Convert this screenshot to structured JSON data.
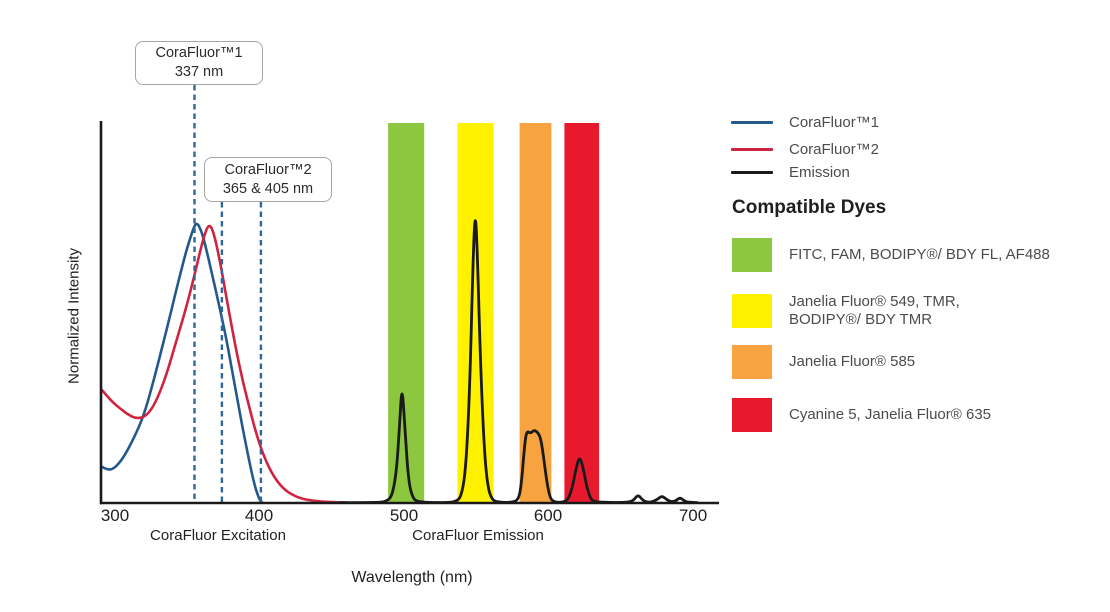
{
  "axes": {
    "y_label": "Normalized Intensity",
    "x_label": "Wavelength (nm)",
    "x_ticks": [
      "300",
      "400",
      "500",
      "600",
      "700"
    ],
    "excitation_section_label": "CoraFluor Excitation",
    "emission_section_label": "CoraFluor Emission"
  },
  "callouts": [
    {
      "title": "CoraFluor™1",
      "value": "337 nm"
    },
    {
      "title": "CoraFluor™2",
      "value": "365 & 405 nm"
    }
  ],
  "legend": {
    "items": [
      {
        "label": "CoraFluor™1",
        "color": "#24598c"
      },
      {
        "label": "CoraFluor™2",
        "color": "#cf2340"
      },
      {
        "label": "Emission",
        "color": "#1a1a1a"
      }
    ]
  },
  "compatible_dyes": {
    "heading": "Compatible Dyes",
    "items": [
      {
        "color": "#8dc63f",
        "label": "FITC, FAM, BODIPY®/ BDY FL, AF488"
      },
      {
        "color": "#fff200",
        "label": "Janelia Fluor® 549, TMR,\nBODIPY®/ BDY TMR"
      },
      {
        "color": "#f7a440",
        "label": "Janelia Fluor® 585"
      },
      {
        "color": "#e8192d",
        "label": "Cyanine 5, Janelia Fluor® 635"
      }
    ]
  },
  "chart_data": {
    "type": "line",
    "title": "CoraFluor excitation and emission spectra with compatible dye filter bands",
    "xlabel": "Wavelength (nm)",
    "ylabel": "Normalized Intensity",
    "xlim": [
      290,
      718
    ],
    "ylim": [
      0,
      1
    ],
    "x_ticks": [
      300,
      400,
      500,
      600,
      700
    ],
    "grid": false,
    "legend_position": "right",
    "marker_lines": {
      "style": "dashed",
      "color": "#30679b",
      "labeled_nm": [
        337,
        365,
        405
      ],
      "drawn_at_nm": [
        355,
        374,
        401
      ]
    },
    "emission_bands": [
      {
        "label": "FITC, FAM, BODIPY®/ BDY FL, AF488",
        "color": "#8dc63f",
        "nm_range": [
          489,
          514
        ]
      },
      {
        "label": "Janelia Fluor® 549, TMR, BODIPY®/ BDY TMR",
        "color": "#fff200",
        "nm_range": [
          537,
          562
        ]
      },
      {
        "label": "Janelia Fluor® 585",
        "color": "#f7a440",
        "nm_range": [
          580,
          602
        ]
      },
      {
        "label": "Cyanine 5, Janelia Fluor® 635",
        "color": "#e8192d",
        "nm_range": [
          611,
          635
        ]
      }
    ],
    "series": [
      {
        "name": "CoraFluor™1",
        "key": "corafluor1-excitation",
        "color": "#24598c",
        "width": 2.6,
        "points": [
          [
            291,
            0.095
          ],
          [
            295,
            0.086
          ],
          [
            300,
            0.092
          ],
          [
            306,
            0.12
          ],
          [
            313,
            0.17
          ],
          [
            320,
            0.23
          ],
          [
            328,
            0.34
          ],
          [
            336,
            0.46
          ],
          [
            343,
            0.57
          ],
          [
            349,
            0.66
          ],
          [
            354,
            0.72
          ],
          [
            356.5,
            0.74
          ],
          [
            360,
            0.715
          ],
          [
            364,
            0.655
          ],
          [
            370,
            0.555
          ],
          [
            377,
            0.435
          ],
          [
            384,
            0.285
          ],
          [
            391,
            0.145
          ],
          [
            396,
            0.055
          ],
          [
            399.5,
            0.012
          ],
          [
            401.5,
            0.002
          ]
        ]
      },
      {
        "name": "CoraFluor™2",
        "key": "corafluor2-excitation",
        "color": "#cf2340",
        "width": 2.6,
        "points": [
          [
            291,
            0.297
          ],
          [
            297,
            0.27
          ],
          [
            304,
            0.247
          ],
          [
            311,
            0.228
          ],
          [
            316,
            0.222
          ],
          [
            322,
            0.23
          ],
          [
            328,
            0.263
          ],
          [
            335,
            0.33
          ],
          [
            342,
            0.42
          ],
          [
            349,
            0.51
          ],
          [
            356,
            0.615
          ],
          [
            361,
            0.695
          ],
          [
            365,
            0.737
          ],
          [
            368.5,
            0.71
          ],
          [
            373,
            0.63
          ],
          [
            379,
            0.5
          ],
          [
            386,
            0.36
          ],
          [
            393,
            0.25
          ],
          [
            399,
            0.165
          ],
          [
            405,
            0.105
          ],
          [
            411,
            0.062
          ],
          [
            418,
            0.032
          ],
          [
            427,
            0.013
          ],
          [
            438,
            0.005
          ],
          [
            450,
            0.002
          ],
          [
            460,
            0.001
          ]
        ]
      },
      {
        "name": "Emission",
        "key": "emission",
        "color": "#1a1a1a",
        "width": 2.8,
        "points": [
          [
            455,
            0.001
          ],
          [
            480,
            0.001
          ],
          [
            488,
            0.004
          ],
          [
            492,
            0.02
          ],
          [
            495,
            0.09
          ],
          [
            497,
            0.21
          ],
          [
            498.6,
            0.313
          ],
          [
            500.5,
            0.21
          ],
          [
            503,
            0.06
          ],
          [
            506,
            0.012
          ],
          [
            510,
            0.002
          ],
          [
            525,
            0.001
          ],
          [
            536,
            0.002
          ],
          [
            540,
            0.02
          ],
          [
            543,
            0.1
          ],
          [
            545.5,
            0.3
          ],
          [
            547.5,
            0.6
          ],
          [
            549.3,
            0.785
          ],
          [
            551,
            0.63
          ],
          [
            553,
            0.36
          ],
          [
            555.5,
            0.14
          ],
          [
            558,
            0.04
          ],
          [
            561,
            0.008
          ],
          [
            565,
            0.002
          ],
          [
            574,
            0.001
          ],
          [
            579.5,
            0.008
          ],
          [
            581.5,
            0.06
          ],
          [
            583.5,
            0.155
          ],
          [
            585,
            0.19
          ],
          [
            587.5,
            0.183
          ],
          [
            590,
            0.192
          ],
          [
            592.5,
            0.186
          ],
          [
            594.5,
            0.172
          ],
          [
            596.5,
            0.125
          ],
          [
            598.8,
            0.055
          ],
          [
            601,
            0.014
          ],
          [
            603.5,
            0.003
          ],
          [
            609,
            0.001
          ],
          [
            613.5,
            0.008
          ],
          [
            616.5,
            0.04
          ],
          [
            619,
            0.09
          ],
          [
            621.5,
            0.124
          ],
          [
            624,
            0.092
          ],
          [
            626.5,
            0.042
          ],
          [
            629,
            0.012
          ],
          [
            631.5,
            0.003
          ],
          [
            645,
            0.001
          ],
          [
            656,
            0.002
          ],
          [
            659,
            0.008
          ],
          [
            662,
            0.022
          ],
          [
            665,
            0.008
          ],
          [
            668,
            0.002
          ],
          [
            672,
            0.003
          ],
          [
            675.5,
            0.01
          ],
          [
            678.5,
            0.019
          ],
          [
            681.5,
            0.01
          ],
          [
            684.5,
            0.003
          ],
          [
            688,
            0.005
          ],
          [
            691,
            0.015
          ],
          [
            694,
            0.005
          ],
          [
            697,
            0.002
          ],
          [
            703,
            0.001
          ]
        ]
      }
    ]
  }
}
